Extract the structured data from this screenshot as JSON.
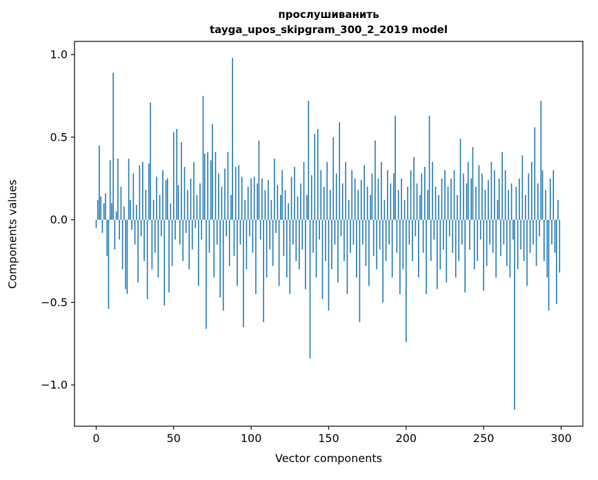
{
  "figure": {
    "title_line1": "прослушиванить",
    "title_line2": "tayga_upos_skipgram_300_2_2019 model",
    "xlabel": "Vector components",
    "ylabel": "Components values"
  },
  "chart_data": {
    "type": "bar",
    "title": "прослушиванить\ntayga_upos_skipgram_300_2_2019 model",
    "xlabel": "Vector components",
    "ylabel": "Components values",
    "bar_color": "#1f77b4",
    "axis_color": "#000000",
    "xlim": [
      -14,
      314
    ],
    "ylim": [
      -1.25,
      1.08
    ],
    "xticks": [
      0,
      50,
      100,
      150,
      200,
      250,
      300
    ],
    "xtick_labels": [
      "0",
      "50",
      "100",
      "150",
      "200",
      "250",
      "300"
    ],
    "yticks": [
      1.0,
      0.5,
      0.0,
      -0.5,
      -1.0
    ],
    "ytick_labels": [
      "1.0",
      "0.5",
      "0.0",
      "−0.5",
      "−1.0"
    ],
    "x_start": 0,
    "values": [
      -0.05,
      0.12,
      0.45,
      0.14,
      -0.08,
      0.1,
      0.16,
      -0.22,
      -0.54,
      0.36,
      0.1,
      0.89,
      -0.18,
      0.05,
      0.37,
      -0.12,
      0.2,
      -0.3,
      0.08,
      -0.42,
      -0.45,
      0.37,
      0.12,
      -0.06,
      0.28,
      -0.15,
      0.09,
      -0.38,
      0.33,
      -0.1,
      0.35,
      -0.25,
      0.18,
      -0.48,
      0.34,
      0.71,
      -0.3,
      0.12,
      -0.2,
      0.26,
      -0.35,
      0.15,
      -0.1,
      0.3,
      -0.52,
      0.24,
      0.25,
      -0.44,
      0.1,
      -0.28,
      0.53,
      -0.12,
      0.55,
      0.21,
      -0.15,
      0.47,
      -0.25,
      0.32,
      -0.08,
      0.18,
      -0.3,
      0.25,
      -0.18,
      0.35,
      -0.05,
      0.15,
      -0.4,
      0.22,
      -0.12,
      0.75,
      0.4,
      -0.66,
      0.41,
      -0.2,
      0.36,
      0.58,
      -0.35,
      0.41,
      -0.15,
      0.28,
      -0.47,
      0.2,
      -0.55,
      0.31,
      -0.1,
      0.41,
      -0.28,
      0.15,
      0.98,
      -0.22,
      0.32,
      -0.4,
      0.33,
      -0.15,
      0.26,
      -0.65,
      0.12,
      -0.3,
      0.2,
      -0.1,
      0.25,
      -0.2,
      0.26,
      -0.45,
      0.22,
      0.48,
      -0.12,
      0.25,
      -0.62,
      0.18,
      -0.35,
      0.24,
      -0.18,
      0.12,
      -0.28,
      0.37,
      -0.08,
      0.21,
      -0.4,
      0.15,
      0.3,
      -0.22,
      0.18,
      -0.35,
      0.1,
      -0.45,
      0.26,
      -0.15,
      0.32,
      -0.25,
      0.14,
      -0.3,
      0.22,
      -0.18,
      0.35,
      -0.42,
      0.15,
      0.72,
      -0.84,
      0.27,
      -0.2,
      0.52,
      -0.35,
      0.55,
      -0.12,
      0.3,
      -0.48,
      0.2,
      -0.25,
      0.35,
      -0.55,
      0.18,
      -0.3,
      0.5,
      -0.15,
      0.28,
      -0.38,
      0.59,
      -0.1,
      0.22,
      -0.25,
      0.35,
      -0.45,
      0.12,
      -0.2,
      0.3,
      -0.15,
      0.25,
      -0.35,
      0.18,
      -0.62,
      0.24,
      -0.15,
      0.33,
      -0.28,
      0.2,
      -0.4,
      0.15,
      0.28,
      -0.22,
      0.48,
      -0.3,
      0.25,
      -0.18,
      0.35,
      -0.5,
      0.12,
      -0.25,
      0.3,
      -0.15,
      0.22,
      -0.35,
      0.28,
      0.63,
      -0.2,
      0.18,
      -0.45,
      0.25,
      -0.3,
      0.12,
      -0.74,
      0.2,
      -0.15,
      0.3,
      -0.25,
      0.38,
      -0.1,
      0.22,
      -0.35,
      0.15,
      0.28,
      -0.2,
      0.32,
      -0.45,
      0.18,
      0.63,
      -0.25,
      0.35,
      -0.12,
      0.2,
      -0.42,
      0.15,
      -0.3,
      0.25,
      -0.18,
      0.3,
      -0.38,
      0.2,
      -0.1,
      0.25,
      -0.2,
      0.3,
      -0.35,
      0.15,
      -0.25,
      0.49,
      -0.15,
      0.28,
      -0.44,
      0.22,
      0.35,
      -0.18,
      0.25,
      0.44,
      -0.3,
      0.2,
      -0.25,
      0.33,
      -0.12,
      0.28,
      -0.43,
      0.18,
      -0.28,
      0.24,
      -0.15,
      0.35,
      -0.2,
      0.3,
      -0.35,
      0.12,
      0.25,
      -0.22,
      0.41,
      -0.15,
      0.3,
      -0.28,
      0.18,
      -0.35,
      0.22,
      -0.12,
      -1.15,
      0.2,
      -0.3,
      0.25,
      -0.18,
      0.39,
      -0.25,
      0.15,
      -0.4,
      0.28,
      -0.2,
      0.35,
      -0.15,
      0.56,
      -0.28,
      0.22,
      -0.1,
      0.72,
      0.3,
      -0.25,
      0.18,
      -0.35,
      -0.55,
      0.25,
      -0.15,
      0.3,
      -0.2,
      -0.51,
      0.12,
      -0.32
    ]
  }
}
